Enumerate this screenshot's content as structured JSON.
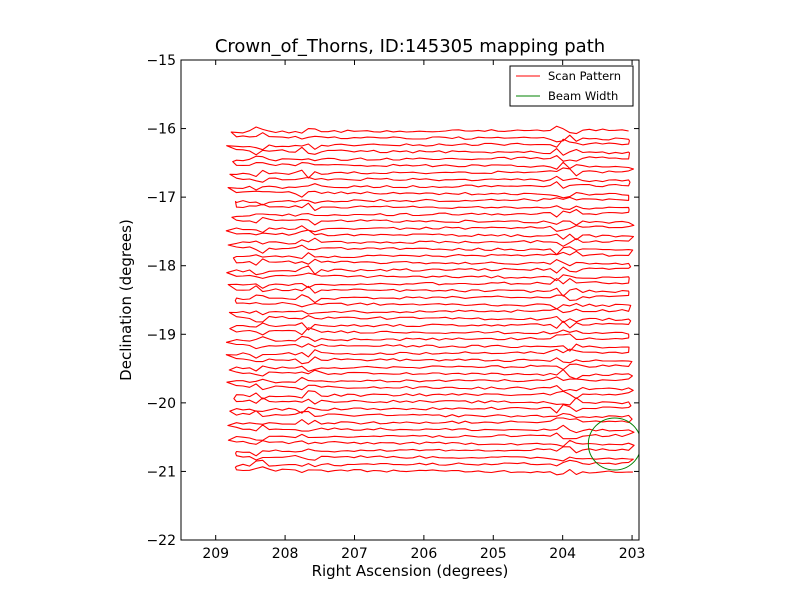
{
  "chart_data": {
    "type": "line",
    "title": "Crown_of_Thorns, ID:145305 mapping path",
    "xlabel": "Right Ascension (degrees)",
    "ylabel": "Declination (degrees)",
    "xlim": [
      209.5,
      202.9
    ],
    "ylim": [
      -22,
      -15
    ],
    "x_ticks": [
      209,
      208,
      207,
      206,
      205,
      204,
      203
    ],
    "y_ticks": [
      -15,
      -16,
      -17,
      -18,
      -19,
      -20,
      -21,
      -22
    ],
    "x_tick_labels": [
      "209",
      "208",
      "207",
      "206",
      "205",
      "204",
      "203"
    ],
    "y_tick_labels": [
      "−15",
      "−16",
      "−17",
      "−18",
      "−19",
      "−20",
      "−21",
      "−22"
    ],
    "legend": {
      "position": "top-right",
      "entries": [
        "Scan Pattern",
        "Beam Width"
      ]
    },
    "series": [
      {
        "name": "Scan Pattern",
        "color": "#ff0000",
        "pattern": "raster",
        "ra_range": [
          203.05,
          208.7
        ],
        "dec_start": -16.02,
        "dec_end": -20.98,
        "row_spacing": 0.1,
        "row_count": 50
      },
      {
        "name": "Beam Width",
        "color": "#008000",
        "shape": "circle",
        "center": [
          203.25,
          -20.6
        ],
        "radius_deg": 0.38
      }
    ]
  }
}
